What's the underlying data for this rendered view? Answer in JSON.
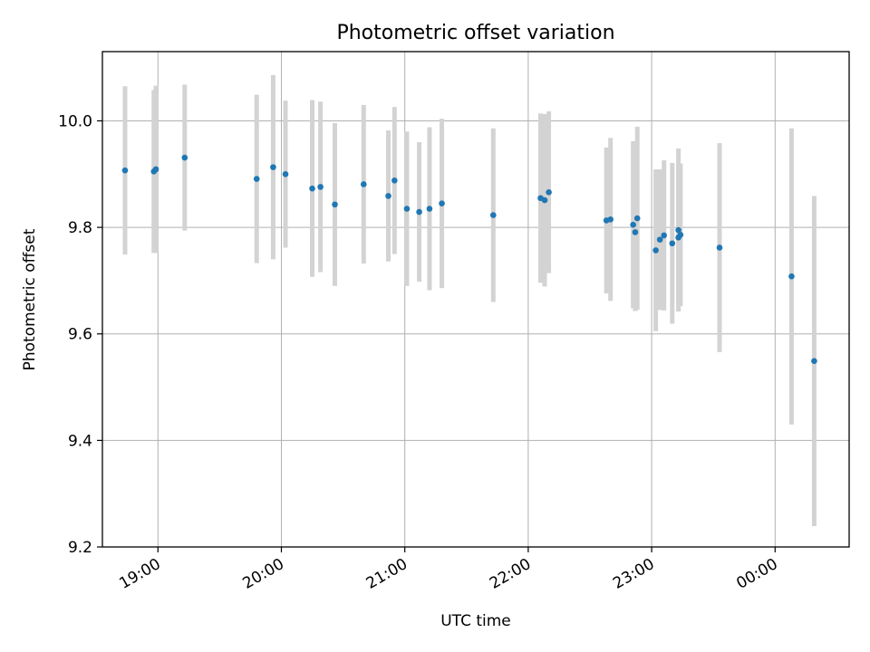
{
  "chart_data": {
    "type": "scatter",
    "title": "Photometric offset variation",
    "xlabel": "UTC time",
    "ylabel": "Photometric offset",
    "grid": true,
    "xlim": [
      "18:33",
      "00:36"
    ],
    "ylim": [
      9.2,
      10.13
    ],
    "xticks": [
      "19:00",
      "20:00",
      "21:00",
      "22:00",
      "23:00",
      "00:00"
    ],
    "yticks": [
      "9.2",
      "9.4",
      "9.6",
      "9.8",
      "10.0"
    ],
    "colors": {
      "point": "#1f77b4",
      "errorbar": "#d3d3d3",
      "grid": "#b0b0b0"
    },
    "points": [
      {
        "x": "18:44",
        "y": 9.907,
        "err": 0.158
      },
      {
        "x": "18:58",
        "y": 9.905,
        "err": 0.153
      },
      {
        "x": "18:59",
        "y": 9.909,
        "err": 0.157
      },
      {
        "x": "19:13",
        "y": 9.931,
        "err": 0.137
      },
      {
        "x": "19:48",
        "y": 9.891,
        "err": 0.158
      },
      {
        "x": "19:56",
        "y": 9.913,
        "err": 0.173
      },
      {
        "x": "20:02",
        "y": 9.9,
        "err": 0.138
      },
      {
        "x": "20:15",
        "y": 9.873,
        "err": 0.166
      },
      {
        "x": "20:19",
        "y": 9.876,
        "err": 0.16
      },
      {
        "x": "20:26",
        "y": 9.843,
        "err": 0.153
      },
      {
        "x": "20:40",
        "y": 9.881,
        "err": 0.149
      },
      {
        "x": "20:52",
        "y": 9.859,
        "err": 0.123
      },
      {
        "x": "20:55",
        "y": 9.888,
        "err": 0.138
      },
      {
        "x": "21:01",
        "y": 9.835,
        "err": 0.145
      },
      {
        "x": "21:07",
        "y": 9.829,
        "err": 0.131
      },
      {
        "x": "21:12",
        "y": 9.835,
        "err": 0.153
      },
      {
        "x": "21:18",
        "y": 9.845,
        "err": 0.159
      },
      {
        "x": "21:43",
        "y": 9.823,
        "err": 0.163
      },
      {
        "x": "22:06",
        "y": 9.855,
        "err": 0.159
      },
      {
        "x": "22:08",
        "y": 9.851,
        "err": 0.162
      },
      {
        "x": "22:10",
        "y": 9.866,
        "err": 0.152
      },
      {
        "x": "22:38",
        "y": 9.813,
        "err": 0.137
      },
      {
        "x": "22:40",
        "y": 9.815,
        "err": 0.153
      },
      {
        "x": "22:51",
        "y": 9.805,
        "err": 0.157
      },
      {
        "x": "22:52",
        "y": 9.791,
        "err": 0.148
      },
      {
        "x": "22:53",
        "y": 9.817,
        "err": 0.172
      },
      {
        "x": "23:02",
        "y": 9.757,
        "err": 0.152
      },
      {
        "x": "23:04",
        "y": 9.777,
        "err": 0.132
      },
      {
        "x": "23:06",
        "y": 9.785,
        "err": 0.141
      },
      {
        "x": "23:10",
        "y": 9.77,
        "err": 0.151
      },
      {
        "x": "23:13",
        "y": 9.795,
        "err": 0.153
      },
      {
        "x": "23:13",
        "y": 9.781,
        "err": 0.138
      },
      {
        "x": "23:14",
        "y": 9.786,
        "err": 0.134
      },
      {
        "x": "23:33",
        "y": 9.762,
        "err": 0.196
      },
      {
        "x": "00:08",
        "y": 9.708,
        "err": 0.278
      },
      {
        "x": "00:19",
        "y": 9.549,
        "err": 0.31
      }
    ]
  }
}
